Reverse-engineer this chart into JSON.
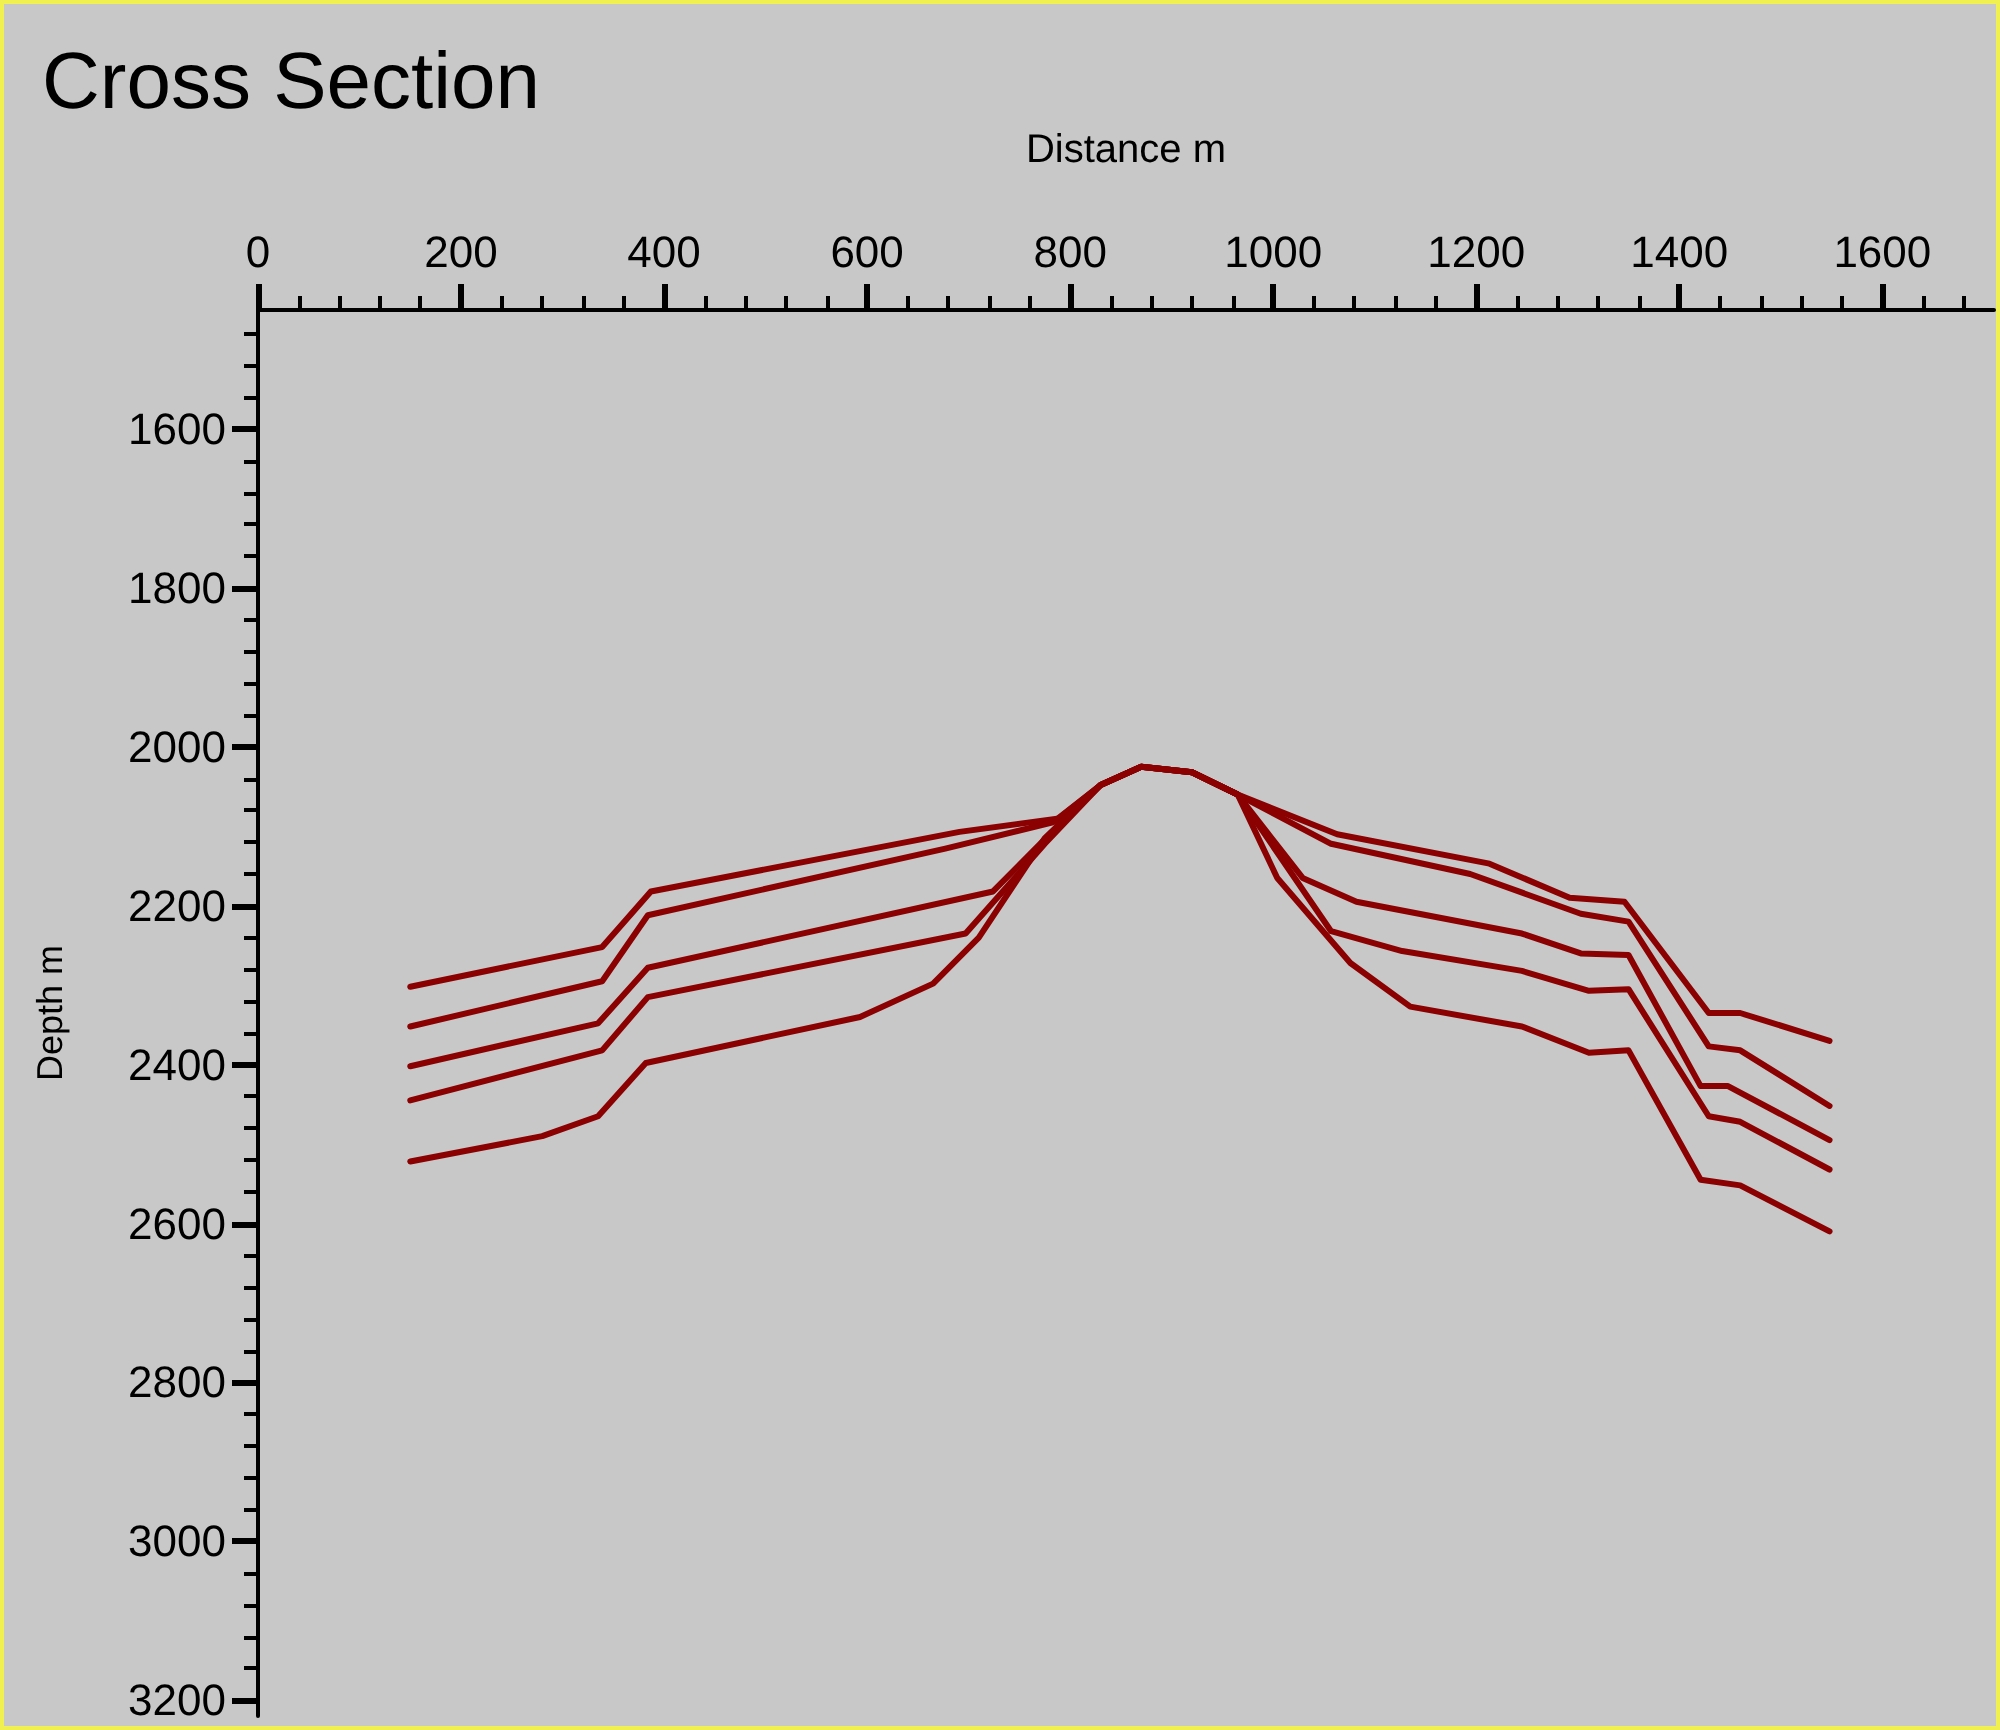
{
  "chart_data": {
    "type": "line",
    "title": "Cross Section",
    "xlabel": "Distance m",
    "ylabel": "Depth m",
    "xlim": [
      0,
      1710
    ],
    "xticks": [
      0,
      200,
      400,
      600,
      800,
      1000,
      1200,
      1400,
      1600
    ],
    "ylim": [
      3220,
      1450
    ],
    "yticks": [
      1600,
      1800,
      2000,
      2200,
      2400,
      2600,
      2800,
      3000,
      3200
    ],
    "grid": false,
    "marker": "none",
    "line_style": "solid",
    "series": [
      {
        "color": "#8b0000",
        "x": [
          150,
          339,
          387,
          691,
          789,
          830,
          870,
          920,
          965,
          1063,
          1213,
          1292,
          1346,
          1429,
          1460,
          1548
        ],
        "values": [
          2302,
          2252,
          2182,
          2107,
          2090,
          2048,
          2025,
          2032,
          2060,
          2110,
          2147,
          2190,
          2195,
          2335,
          2335,
          2370
        ]
      },
      {
        "color": "#8b0000",
        "x": [
          150,
          339,
          384,
          677,
          783,
          830,
          870,
          920,
          965,
          1057,
          1194,
          1303,
          1350,
          1429,
          1460,
          1548
        ],
        "values": [
          2352,
          2295,
          2212,
          2128,
          2095,
          2048,
          2025,
          2032,
          2060,
          2122,
          2160,
          2210,
          2220,
          2377,
          2382,
          2452
        ]
      },
      {
        "color": "#8b0000",
        "x": [
          150,
          335,
          384,
          724,
          789,
          830,
          870,
          920,
          965,
          1029,
          1082,
          1245,
          1303,
          1350,
          1421,
          1448,
          1548
        ],
        "values": [
          2402,
          2348,
          2278,
          2182,
          2098,
          2048,
          2025,
          2032,
          2060,
          2165,
          2195,
          2235,
          2260,
          2262,
          2427,
          2427,
          2495
        ]
      },
      {
        "color": "#8b0000",
        "x": [
          150,
          339,
          384,
          697,
          775,
          830,
          870,
          920,
          965,
          1057,
          1127,
          1245,
          1311,
          1350,
          1429,
          1460,
          1548
        ],
        "values": [
          2445,
          2382,
          2315,
          2235,
          2122,
          2048,
          2025,
          2032,
          2060,
          2232,
          2257,
          2282,
          2307,
          2305,
          2465,
          2472,
          2532
        ]
      },
      {
        "color": "#8b0000",
        "x": [
          150,
          280,
          335,
          382,
          593,
          665,
          710,
          775,
          830,
          870,
          920,
          965,
          1004,
          1076,
          1135,
          1245,
          1311,
          1350,
          1421,
          1460,
          1548
        ],
        "values": [
          2522,
          2490,
          2465,
          2398,
          2340,
          2298,
          2240,
          2115,
          2048,
          2025,
          2032,
          2060,
          2165,
          2272,
          2327,
          2352,
          2385,
          2382,
          2545,
          2552,
          2610
        ]
      }
    ]
  }
}
